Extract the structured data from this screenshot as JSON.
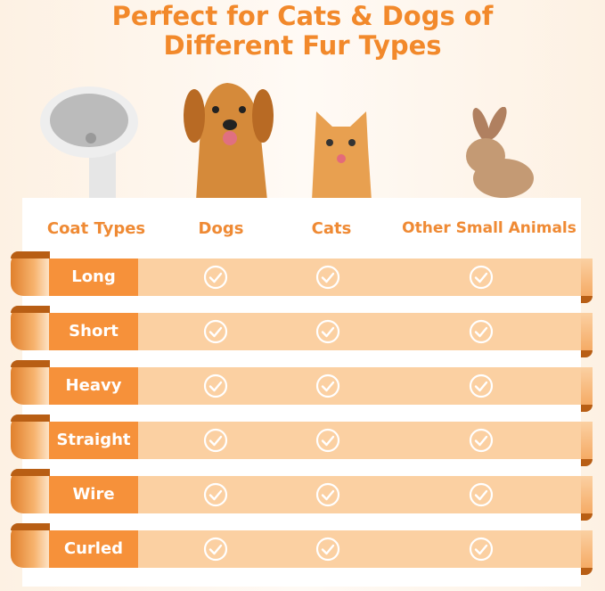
{
  "title": {
    "line1": "Perfect for Cats & Dogs of",
    "line2": "Different Fur Types"
  },
  "table": {
    "headers": [
      "Coat Types",
      "Dogs",
      "Cats",
      "Other Small Animals"
    ],
    "rows": [
      {
        "label": "Long",
        "dogs": true,
        "cats": true,
        "other": true
      },
      {
        "label": "Short",
        "dogs": true,
        "cats": true,
        "other": true
      },
      {
        "label": "Heavy",
        "dogs": true,
        "cats": true,
        "other": true
      },
      {
        "label": "Straight",
        "dogs": true,
        "cats": true,
        "other": true
      },
      {
        "label": "Wire",
        "dogs": true,
        "cats": true,
        "other": true
      },
      {
        "label": "Curled",
        "dogs": true,
        "cats": true,
        "other": true
      }
    ]
  },
  "colors": {
    "accent": "#f2892b",
    "band": "#fbd0a2",
    "label_bg": "#f6913a"
  },
  "icons": {
    "check": "check-circle-icon"
  }
}
